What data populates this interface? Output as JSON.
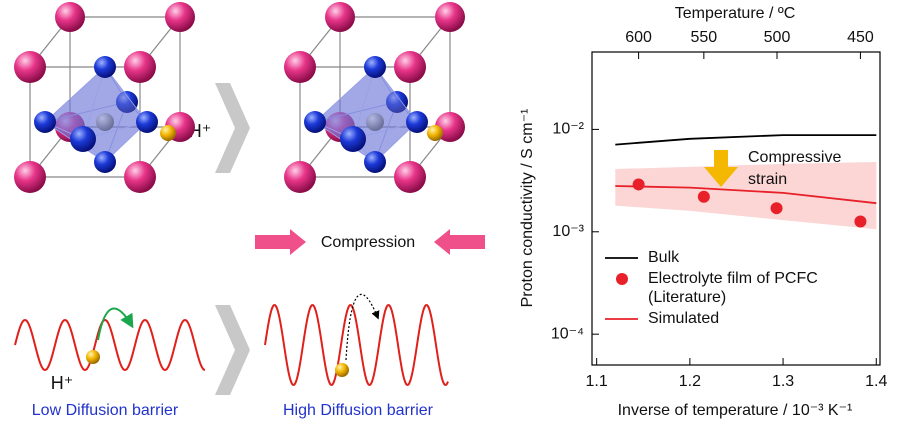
{
  "diagram": {
    "h_plus_labels": [
      "H⁺",
      "H⁺"
    ],
    "compression": "Compression",
    "low_label": "Low Diffusion barrier",
    "high_label": "High Diffusion barrier"
  },
  "chart_data": {
    "type": "line",
    "x_label": "Inverse of temperature / 10⁻³ K⁻¹",
    "y_label": "Proton conductivity / S cm⁻¹",
    "top_axis": {
      "label": "Temperature / ºC",
      "ticks": [
        {
          "value": 1.145,
          "label": "600"
        },
        {
          "value": 1.215,
          "label": "550"
        },
        {
          "value": 1.2935,
          "label": "500"
        },
        {
          "value": 1.383,
          "label": "450"
        }
      ]
    },
    "xlim": [
      1.095,
      1.404
    ],
    "xticks": [
      1.1,
      1.2,
      1.3,
      1.4
    ],
    "ylim": [
      5e-05,
      0.057
    ],
    "yscale": "log",
    "yticks": [
      {
        "value": 0.0001,
        "label": "10⁻⁴"
      },
      {
        "value": 0.001,
        "label": "10⁻³"
      },
      {
        "value": 0.01,
        "label": "10⁻²"
      }
    ],
    "legend": "lower left",
    "series": [
      {
        "name": "Bulk",
        "type": "line",
        "color": "#000000",
        "x": [
          1.12,
          1.2,
          1.3,
          1.4
        ],
        "values": [
          0.0071,
          0.0081,
          0.0088,
          0.0088
        ]
      },
      {
        "name": "Electrolyte film of PCFC",
        "name_cont": "(Literature)",
        "type": "scatter",
        "color": "#e8202a",
        "x": [
          1.145,
          1.215,
          1.293,
          1.383
        ],
        "values": [
          0.0029,
          0.0022,
          0.0017,
          0.00126
        ]
      },
      {
        "name": "Simulated",
        "type": "line",
        "color": "#e8202a",
        "x": [
          1.12,
          1.2,
          1.3,
          1.4
        ],
        "values": [
          0.0028,
          0.0027,
          0.0024,
          0.0019
        ],
        "band": {
          "color": "#fbd6d4",
          "x": [
            1.12,
            1.2,
            1.3,
            1.4
          ],
          "lower": [
            0.0018,
            0.0016,
            0.0013,
            0.00106
          ],
          "upper": [
            0.0041,
            0.0043,
            0.0046,
            0.0048
          ]
        }
      }
    ],
    "annotation": {
      "lines": [
        "Compressive",
        "strain"
      ],
      "arrow_color": "#f5b800"
    }
  }
}
